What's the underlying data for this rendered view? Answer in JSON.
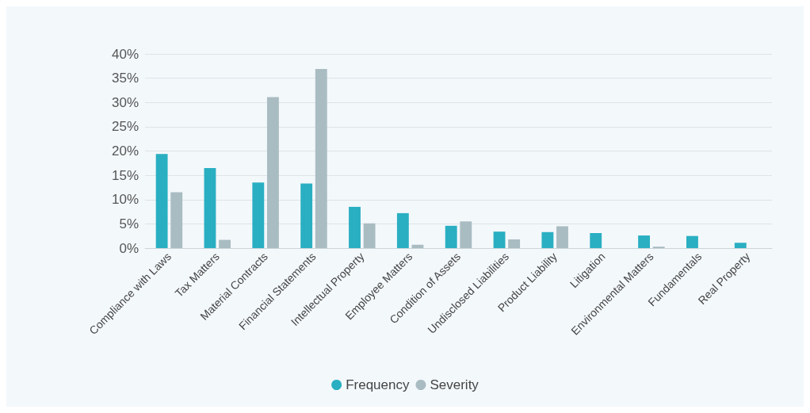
{
  "chart_data": {
    "type": "bar",
    "categories": [
      "Compliance with Laws",
      "Tax Matters",
      "Material Contracts",
      "Financial Statements",
      "Intellectual Property",
      "Employee Matters",
      "Condition of Assets",
      "Undisclosed Liabilities",
      "Product Liability",
      "Litigation",
      "Environmental Matters",
      "Fundamentals",
      "Real Property"
    ],
    "series": [
      {
        "name": "Frequency",
        "color": "#2aafc2",
        "values": [
          19.4,
          16.5,
          13.5,
          13.3,
          8.5,
          7.2,
          4.6,
          3.4,
          3.3,
          3.1,
          2.6,
          2.5,
          1.1
        ]
      },
      {
        "name": "Severity",
        "color": "#a9bcc2",
        "values": [
          11.5,
          1.7,
          31.1,
          36.9,
          5.1,
          0.7,
          5.5,
          1.8,
          4.5,
          null,
          0.3,
          null,
          null
        ]
      }
    ],
    "ylim": [
      0,
      40
    ],
    "yticks": [
      {
        "value": 0,
        "label": "0%"
      },
      {
        "value": 5,
        "label": "5%"
      },
      {
        "value": 10,
        "label": "10%"
      },
      {
        "value": 15,
        "label": "15%"
      },
      {
        "value": 20,
        "label": "20%"
      },
      {
        "value": 25,
        "label": "25%"
      },
      {
        "value": 30,
        "label": "30%"
      },
      {
        "value": 35,
        "label": "35%"
      },
      {
        "value": 40,
        "label": "40%"
      }
    ],
    "grid": "y",
    "legend": "bottom"
  }
}
